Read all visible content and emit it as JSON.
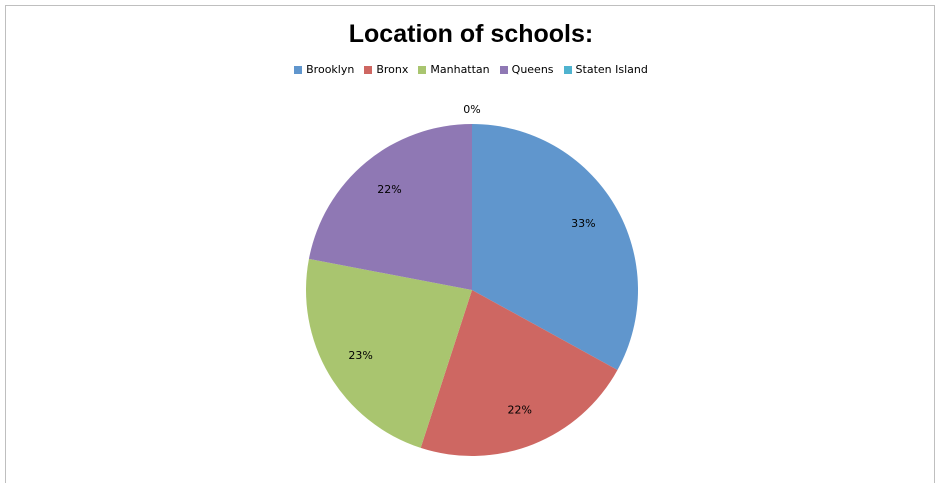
{
  "chart_data": {
    "type": "pie",
    "title": "Location of schools:",
    "legend_position": "top",
    "slices": [
      {
        "name": "Brooklyn",
        "value": 33,
        "label": "33%",
        "color": "#6096cd"
      },
      {
        "name": "Bronx",
        "value": 22,
        "label": "22%",
        "color": "#ce6762"
      },
      {
        "name": "Manhattan",
        "value": 23,
        "label": "23%",
        "color": "#a9c56f"
      },
      {
        "name": "Queens",
        "value": 22,
        "label": "22%",
        "color": "#8f78b4"
      },
      {
        "name": "Staten Island",
        "value": 0,
        "label": "0%",
        "color": "#4fb3cf"
      }
    ]
  }
}
